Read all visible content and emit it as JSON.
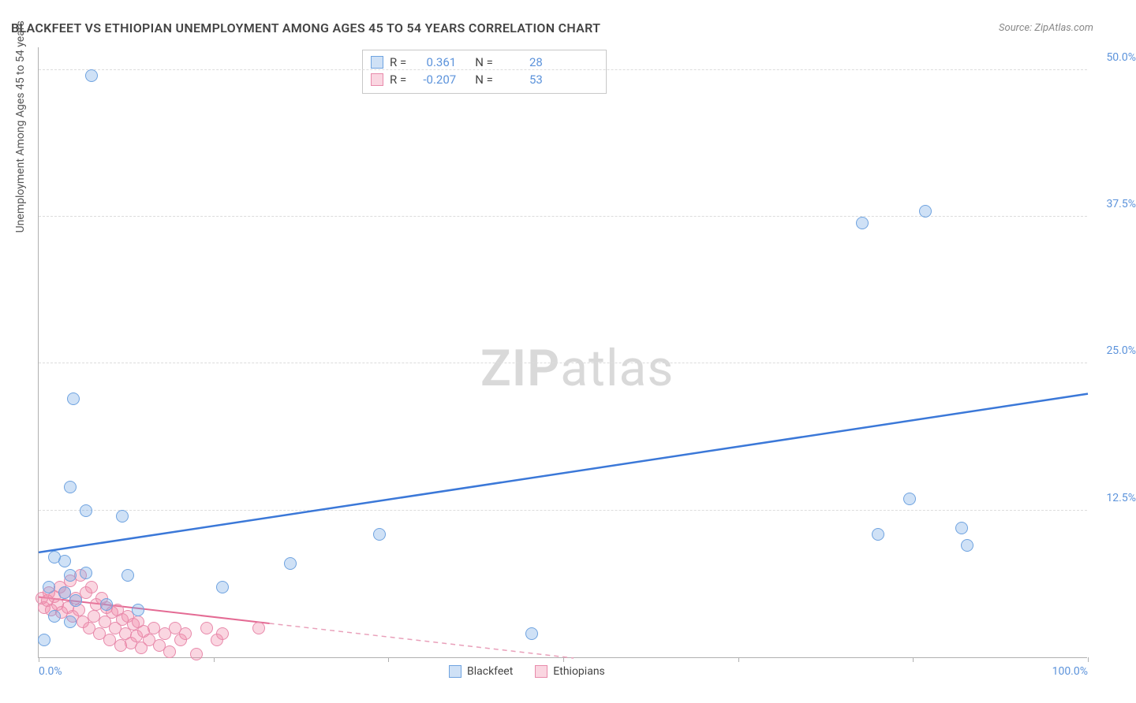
{
  "title": "BLACKFEET VS ETHIOPIAN UNEMPLOYMENT AMONG AGES 45 TO 54 YEARS CORRELATION CHART",
  "source": "Source: ZipAtlas.com",
  "ylabel": "Unemployment Among Ages 45 to 54 years",
  "watermark_bold": "ZIP",
  "watermark_rest": "atlas",
  "chart": {
    "type": "scatter",
    "xlim": [
      0,
      100
    ],
    "ylim": [
      0,
      52
    ],
    "x_ticks": [
      0,
      16.67,
      33.33,
      50,
      66.67,
      83.33,
      100
    ],
    "x_tick_labels": {
      "0": "0.0%",
      "100": "100.0%"
    },
    "y_gridlines": [
      12.5,
      25.0,
      37.5,
      50.0
    ],
    "y_tick_labels": [
      "12.5%",
      "25.0%",
      "37.5%",
      "50.0%"
    ],
    "background_color": "#ffffff",
    "grid_color": "#dcdcdc",
    "marker_radius": 8,
    "marker_stroke_width": 1
  },
  "series": {
    "blackfeet": {
      "label": "Blackfeet",
      "color_fill": "rgba(118,168,228,0.35)",
      "color_stroke": "#6fa3e0",
      "text_color": "#5c93db",
      "R": "0.361",
      "N": "28",
      "trend": {
        "y_at_x0": 9.0,
        "y_at_x100": 22.5,
        "width": 2.5,
        "dash": "none"
      },
      "points": [
        [
          5.0,
          49.5
        ],
        [
          3.3,
          22.0
        ],
        [
          3.0,
          14.5
        ],
        [
          4.5,
          12.5
        ],
        [
          8.0,
          12.0
        ],
        [
          1.5,
          8.5
        ],
        [
          2.5,
          8.2
        ],
        [
          3.0,
          7.0
        ],
        [
          4.5,
          7.2
        ],
        [
          8.5,
          7.0
        ],
        [
          1.0,
          6.0
        ],
        [
          2.5,
          5.5
        ],
        [
          3.5,
          4.8
        ],
        [
          6.5,
          4.5
        ],
        [
          9.5,
          4.0
        ],
        [
          1.5,
          3.5
        ],
        [
          3.0,
          3.0
        ],
        [
          0.5,
          1.5
        ],
        [
          17.5,
          6.0
        ],
        [
          24.0,
          8.0
        ],
        [
          32.5,
          10.5
        ],
        [
          47.0,
          2.0
        ],
        [
          78.5,
          37.0
        ],
        [
          80.0,
          10.5
        ],
        [
          83.0,
          13.5
        ],
        [
          84.5,
          38.0
        ],
        [
          88.5,
          9.5
        ],
        [
          88.0,
          11.0
        ]
      ]
    },
    "ethiopians": {
      "label": "Ethiopians",
      "color_fill": "rgba(242,138,170,0.35)",
      "color_stroke": "#e88aab",
      "text_color": "#e46b94",
      "R": "-0.207",
      "N": "53",
      "trend": {
        "y_at_x0": 5.2,
        "y_at_x100": -5.0,
        "width": 2,
        "dash": "6 5"
      },
      "points": [
        [
          0.3,
          5.0
        ],
        [
          0.5,
          4.2
        ],
        [
          0.8,
          4.8
        ],
        [
          1.0,
          5.5
        ],
        [
          1.2,
          4.0
        ],
        [
          1.5,
          5.2
        ],
        [
          1.8,
          4.5
        ],
        [
          2.0,
          6.0
        ],
        [
          2.2,
          3.8
        ],
        [
          2.5,
          5.5
        ],
        [
          2.8,
          4.2
        ],
        [
          3.0,
          6.5
        ],
        [
          3.2,
          3.5
        ],
        [
          3.5,
          5.0
        ],
        [
          3.8,
          4.0
        ],
        [
          4.0,
          7.0
        ],
        [
          4.2,
          3.0
        ],
        [
          4.5,
          5.5
        ],
        [
          4.8,
          2.5
        ],
        [
          5.0,
          6.0
        ],
        [
          5.3,
          3.5
        ],
        [
          5.5,
          4.5
        ],
        [
          5.8,
          2.0
        ],
        [
          6.0,
          5.0
        ],
        [
          6.3,
          3.0
        ],
        [
          6.5,
          4.2
        ],
        [
          6.8,
          1.5
        ],
        [
          7.0,
          3.8
        ],
        [
          7.3,
          2.5
        ],
        [
          7.5,
          4.0
        ],
        [
          7.8,
          1.0
        ],
        [
          8.0,
          3.2
        ],
        [
          8.3,
          2.0
        ],
        [
          8.5,
          3.5
        ],
        [
          8.8,
          1.2
        ],
        [
          9.0,
          2.8
        ],
        [
          9.3,
          1.8
        ],
        [
          9.5,
          3.0
        ],
        [
          9.8,
          0.8
        ],
        [
          10.0,
          2.2
        ],
        [
          10.5,
          1.5
        ],
        [
          11.0,
          2.5
        ],
        [
          11.5,
          1.0
        ],
        [
          12.0,
          2.0
        ],
        [
          12.5,
          0.5
        ],
        [
          13.0,
          2.5
        ],
        [
          13.5,
          1.5
        ],
        [
          14.0,
          2.0
        ],
        [
          15.0,
          0.3
        ],
        [
          16.0,
          2.5
        ],
        [
          17.0,
          1.5
        ],
        [
          17.5,
          2.0
        ],
        [
          21.0,
          2.5
        ]
      ]
    }
  },
  "stats_labels": {
    "R": "R =",
    "N": "N ="
  },
  "x_axis_label_color": "#5c93db"
}
